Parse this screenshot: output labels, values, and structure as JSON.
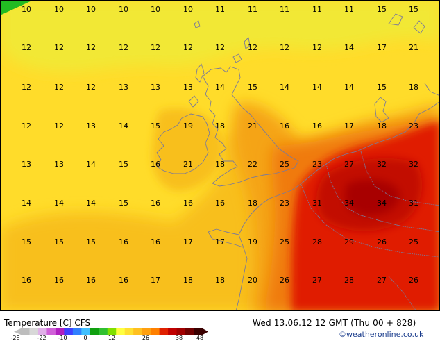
{
  "map": {
    "grid_values": [
      [
        10,
        10,
        10,
        10,
        10,
        10,
        11,
        11,
        11,
        11,
        11,
        15,
        15
      ],
      [
        12,
        12,
        12,
        12,
        12,
        12,
        12,
        12,
        12,
        12,
        14,
        17,
        21
      ],
      [
        12,
        12,
        12,
        13,
        13,
        13,
        14,
        15,
        14,
        14,
        14,
        15,
        18
      ],
      [
        12,
        12,
        13,
        14,
        15,
        19,
        18,
        21,
        16,
        16,
        17,
        18,
        23
      ],
      [
        13,
        13,
        14,
        15,
        16,
        21,
        18,
        22,
        25,
        23,
        27,
        32,
        32
      ],
      [
        14,
        14,
        14,
        15,
        16,
        16,
        16,
        18,
        23,
        31,
        34,
        34,
        31
      ],
      [
        15,
        15,
        15,
        16,
        16,
        17,
        17,
        19,
        25,
        28,
        29,
        26,
        25
      ],
      [
        16,
        16,
        16,
        16,
        17,
        18,
        18,
        20,
        26,
        27,
        28,
        27,
        26
      ]
    ],
    "colors": {
      "land_outline": "#7a7a9a",
      "t12": "#ffdc2a",
      "t10": "#f2e835",
      "t16": "#f8bf1c",
      "t20": "#f5a414",
      "t24": "#f07a0a",
      "t28": "#e01e05",
      "t32": "#c20a04",
      "t34": "#a80404",
      "green": "#22bb22"
    }
  },
  "footer": {
    "title": "Temperature [C] CFS",
    "time": "Wed 13.06.12 12 GMT (Thu 00 + 828)",
    "copyright": "©weatheronline.co.uk"
  },
  "scale": {
    "tick_labels": [
      "-28",
      "-22",
      "-10",
      "0",
      "12",
      "26",
      "38",
      "48"
    ],
    "colors": [
      "#bdbdbd",
      "#d8d8d8",
      "#e0b0e8",
      "#d060d8",
      "#b020c0",
      "#4040ff",
      "#3080ff",
      "#40c0ff",
      "#10a010",
      "#30c030",
      "#80e000",
      "#ffff40",
      "#ffe030",
      "#ffc020",
      "#ffa010",
      "#ff8000",
      "#e02000",
      "#c00000",
      "#a00000",
      "#700000",
      "#3a0000"
    ]
  }
}
